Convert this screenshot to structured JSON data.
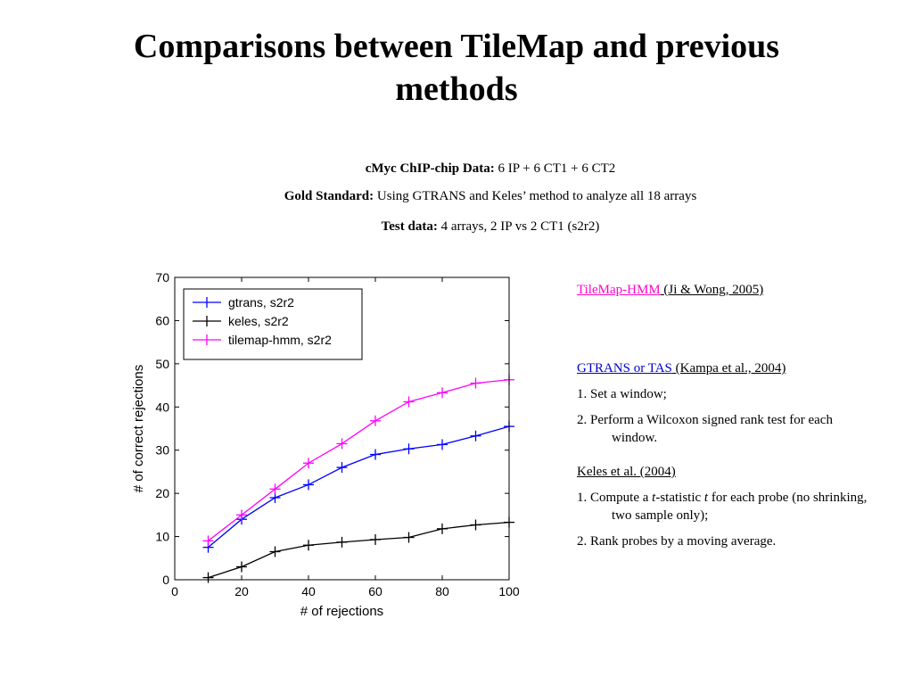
{
  "slide": {
    "title": "Comparisons between TileMap and previous methods",
    "info": [
      {
        "label": "cMyc ChIP-chip Data:",
        "text": " 6 IP + 6 CT1 + 6 CT2"
      },
      {
        "label": "Gold Standard:",
        "text": " Using GTRANS and Keles’ method to analyze all 18 arrays"
      },
      {
        "label": "Test data:",
        "text": " 4 arrays, 2 IP vs 2 CT1 (s2r2)"
      }
    ],
    "methods": {
      "tilemap": {
        "name": "TileMap-HMM",
        "ref": " (Ji & Wong, 2005)"
      },
      "gtrans": {
        "name": "GTRANS or TAS",
        "ref": " (Kampa et al., 2004)",
        "step1": "1. Set a window;",
        "step2": "2. Perform a Wilcoxon signed rank test for each window."
      },
      "keles": {
        "name": "Keles et al. (2004)",
        "step1_a": "1. Compute a ",
        "step1_t1": "t",
        "step1_b": "-statistic ",
        "step1_t2": "t",
        "step1_c": " for each probe (no shrinking, two sample only);",
        "step2": "2. Rank probes by a moving average."
      }
    }
  },
  "chart_data": {
    "type": "line",
    "xlabel": "# of rejections",
    "ylabel": "# of correct rejections",
    "xlim": [
      0,
      100
    ],
    "ylim": [
      0,
      70
    ],
    "xticks": [
      0,
      20,
      40,
      60,
      80,
      100
    ],
    "yticks": [
      0,
      10,
      20,
      30,
      40,
      50,
      60,
      70
    ],
    "legend_position": "top-left",
    "x": [
      10,
      20,
      30,
      40,
      50,
      60,
      70,
      80,
      90,
      100
    ],
    "series": [
      {
        "name": "gtrans, s2r2",
        "color": "#0000ff",
        "values": [
          7.5,
          14,
          19,
          22,
          26,
          29,
          30.3,
          31.3,
          33.3,
          35.5
        ]
      },
      {
        "name": "keles, s2r2",
        "color": "#000000",
        "values": [
          0.5,
          3,
          6.5,
          8,
          8.7,
          9.3,
          9.8,
          11.8,
          12.7,
          13.3
        ]
      },
      {
        "name": "tilemap-hmm, s2r2",
        "color": "#ff00ff",
        "values": [
          9,
          15,
          21,
          27,
          31.5,
          36.8,
          41.2,
          43.3,
          45.5,
          46.3
        ]
      }
    ]
  }
}
